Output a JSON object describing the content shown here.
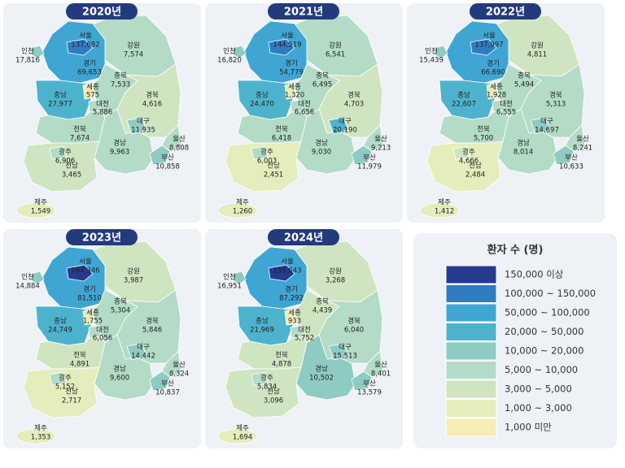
{
  "panels": [
    {
      "year": "2020년",
      "regions": [
        {
          "name": "강원",
          "value": 7574,
          "value_label": "7,574"
        },
        {
          "name": "경기",
          "value": 69653,
          "value_label": "69,653"
        },
        {
          "name": "인천",
          "value": 17816,
          "value_label": "17,816"
        },
        {
          "name": "충북",
          "value": 7533,
          "value_label": "7,533"
        },
        {
          "name": "충남",
          "value": 27977,
          "value_label": "27,977"
        },
        {
          "name": "경북",
          "value": 4616,
          "value_label": "4,616"
        },
        {
          "name": "전북",
          "value": 7674,
          "value_label": "7,674"
        },
        {
          "name": "경남",
          "value": 9963,
          "value_label": "9,963"
        },
        {
          "name": "전남",
          "value": 3465,
          "value_label": "3,465"
        },
        {
          "name": "서울",
          "value": 137682,
          "value_label": "137,682"
        },
        {
          "name": "세종",
          "value": 575
        },
        {
          "name": "대전",
          "value": 5886,
          "value_label": "5,886"
        },
        {
          "name": "대구",
          "value": 11935,
          "value_label": "11,935"
        },
        {
          "name": "광주",
          "value": 6906,
          "value_label": "6,906"
        },
        {
          "name": "울산",
          "value": 8808,
          "value_label": "8,808"
        },
        {
          "name": "부산",
          "value": 10858,
          "value_label": "10,858"
        },
        {
          "name": "제주",
          "value": 1549,
          "value_label": "1,549"
        }
      ]
    },
    {
      "year": "2021년",
      "regions": [
        {
          "name": "강원",
          "value": 6541,
          "value_label": "6,541"
        },
        {
          "name": "경기",
          "value": 54779,
          "value_label": "54,779"
        },
        {
          "name": "인천",
          "value": 16820,
          "value_label": "16,820"
        },
        {
          "name": "충북",
          "value": 6495,
          "value_label": "6,495"
        },
        {
          "name": "충남",
          "value": 24470,
          "value_label": "24,470"
        },
        {
          "name": "경북",
          "value": 4703,
          "value_label": "4,703"
        },
        {
          "name": "전북",
          "value": 6418,
          "value_label": "6,418"
        },
        {
          "name": "경남",
          "value": 9030,
          "value_label": "9,030"
        },
        {
          "name": "전남",
          "value": 2451,
          "value_label": "2,451"
        },
        {
          "name": "서울",
          "value": 144519,
          "value_label": "144,519"
        },
        {
          "name": "세종",
          "value": 1320,
          "value_label": "1,320"
        },
        {
          "name": "대전",
          "value": 6656,
          "value_label": "6,656"
        },
        {
          "name": "대구",
          "value": 20190,
          "value_label": "20,190"
        },
        {
          "name": "광주",
          "value": 6003,
          "value_label": "6,003"
        },
        {
          "name": "울산",
          "value": 9213,
          "value_label": "9,213"
        },
        {
          "name": "부산",
          "value": 11979,
          "value_label": "11,979"
        },
        {
          "name": "제주",
          "value": 1260,
          "value_label": "1,260"
        }
      ]
    },
    {
      "year": "2022년",
      "regions": [
        {
          "name": "강원",
          "value": 4811,
          "value_label": "4,811"
        },
        {
          "name": "경기",
          "value": 66690,
          "value_label": "66,690"
        },
        {
          "name": "인천",
          "value": 15439,
          "value_label": "15,439"
        },
        {
          "name": "충북",
          "value": 5494,
          "value_label": "5,494"
        },
        {
          "name": "충남",
          "value": 22607,
          "value_label": "22,607"
        },
        {
          "name": "경북",
          "value": 5313,
          "value_label": "5,313"
        },
        {
          "name": "전북",
          "value": 5700,
          "value_label": "5,700"
        },
        {
          "name": "경남",
          "value": 8014,
          "value_label": "8,014"
        },
        {
          "name": "전남",
          "value": 2484,
          "value_label": "2,484"
        },
        {
          "name": "서울",
          "value": 137997,
          "value_label": "137,997"
        },
        {
          "name": "세종",
          "value": 1928,
          "value_label": "1,928"
        },
        {
          "name": "대전",
          "value": 6555,
          "value_label": "6,555"
        },
        {
          "name": "대구",
          "value": 14697,
          "value_label": "14,697"
        },
        {
          "name": "광주",
          "value": 4666,
          "value_label": "4,666"
        },
        {
          "name": "울산",
          "value": 8241,
          "value_label": "8,241"
        },
        {
          "name": "부산",
          "value": 10633,
          "value_label": "10,633"
        },
        {
          "name": "제주",
          "value": 1412,
          "value_label": "1,412"
        }
      ]
    },
    {
      "year": "2023년",
      "regions": [
        {
          "name": "강원",
          "value": 3987,
          "value_label": "3,987"
        },
        {
          "name": "경기",
          "value": 81510,
          "value_label": "81,510"
        },
        {
          "name": "인천",
          "value": 14884,
          "value_label": "14,884"
        },
        {
          "name": "충북",
          "value": 5304,
          "value_label": "5,304"
        },
        {
          "name": "충남",
          "value": 24749,
          "value_label": "24,749"
        },
        {
          "name": "경북",
          "value": 5846,
          "value_label": "5,846"
        },
        {
          "name": "전북",
          "value": 4891,
          "value_label": "4,891"
        },
        {
          "name": "경남",
          "value": 9600,
          "value_label": "9,600"
        },
        {
          "name": "전남",
          "value": 2717,
          "value_label": "2,717"
        },
        {
          "name": "서울",
          "value": 164346,
          "value_label": "164,346"
        },
        {
          "name": "세종",
          "value": 1755,
          "value_label": "1,755"
        },
        {
          "name": "대전",
          "value": 6056,
          "value_label": "6,056"
        },
        {
          "name": "대구",
          "value": 14442,
          "value_label": "14,442"
        },
        {
          "name": "광주",
          "value": 5152,
          "value_label": "5,152"
        },
        {
          "name": "울산",
          "value": 8324,
          "value_label": "8,324"
        },
        {
          "name": "부산",
          "value": 10837,
          "value_label": "10,837"
        },
        {
          "name": "제주",
          "value": 1353,
          "value_label": "1,353"
        }
      ]
    },
    {
      "year": "2024년",
      "regions": [
        {
          "name": "강원",
          "value": 3268,
          "value_label": "3,268"
        },
        {
          "name": "경기",
          "value": 87292,
          "value_label": "87,292"
        },
        {
          "name": "인천",
          "value": 16951,
          "value_label": "16,951"
        },
        {
          "name": "충북",
          "value": 4439,
          "value_label": "4,439"
        },
        {
          "name": "충남",
          "value": 21969,
          "value_label": "21,969"
        },
        {
          "name": "경북",
          "value": 6040,
          "value_label": "6,040"
        },
        {
          "name": "전북",
          "value": 4878,
          "value_label": "4,878"
        },
        {
          "name": "경남",
          "value": 10502,
          "value_label": "10,502"
        },
        {
          "name": "전남",
          "value": 3096,
          "value_label": "3,096"
        },
        {
          "name": "서울",
          "value": 159643,
          "value_label": "159,643"
        },
        {
          "name": "세종",
          "value": 933
        },
        {
          "name": "대전",
          "value": 5752,
          "value_label": "5,752"
        },
        {
          "name": "대구",
          "value": 15513,
          "value_label": "15,513"
        },
        {
          "name": "광주",
          "value": 5834,
          "value_label": "5,834"
        },
        {
          "name": "울산",
          "value": 8401,
          "value_label": "8,401"
        },
        {
          "name": "부산",
          "value": 13579,
          "value_label": "13,579"
        },
        {
          "name": "제주",
          "value": 1694,
          "value_label": "1,694"
        }
      ]
    }
  ],
  "legend": {
    "title": "환자 수 (명)",
    "items": [
      {
        "label": "150,000 이상",
        "from": 150000,
        "color": "#253c8e"
      },
      {
        "label": "100,000 ~ 150,000",
        "from": 100000,
        "to": 150000,
        "color": "#2f7cc1"
      },
      {
        "label": "50,000 ~ 100,000",
        "from": 50000,
        "to": 100000,
        "color": "#3fa6d4"
      },
      {
        "label": "20,000 ~ 50,000",
        "from": 20000,
        "to": 50000,
        "color": "#4db3cc"
      },
      {
        "label": "10,000 ~ 20,000",
        "from": 10000,
        "to": 20000,
        "color": "#8ecbc2"
      },
      {
        "label": "5,000 ~ 10,000",
        "from": 5000,
        "to": 10000,
        "color": "#b3dbc6"
      },
      {
        "label": "3,000 ~ 5,000",
        "from": 3000,
        "to": 5000,
        "color": "#cfe5c1"
      },
      {
        "label": "1,000 ~ 3,000",
        "from": 1000,
        "to": 3000,
        "color": "#e5edbc"
      },
      {
        "label": "1,000 미만",
        "to": 1000,
        "color": "#f6ecb6"
      }
    ]
  }
}
